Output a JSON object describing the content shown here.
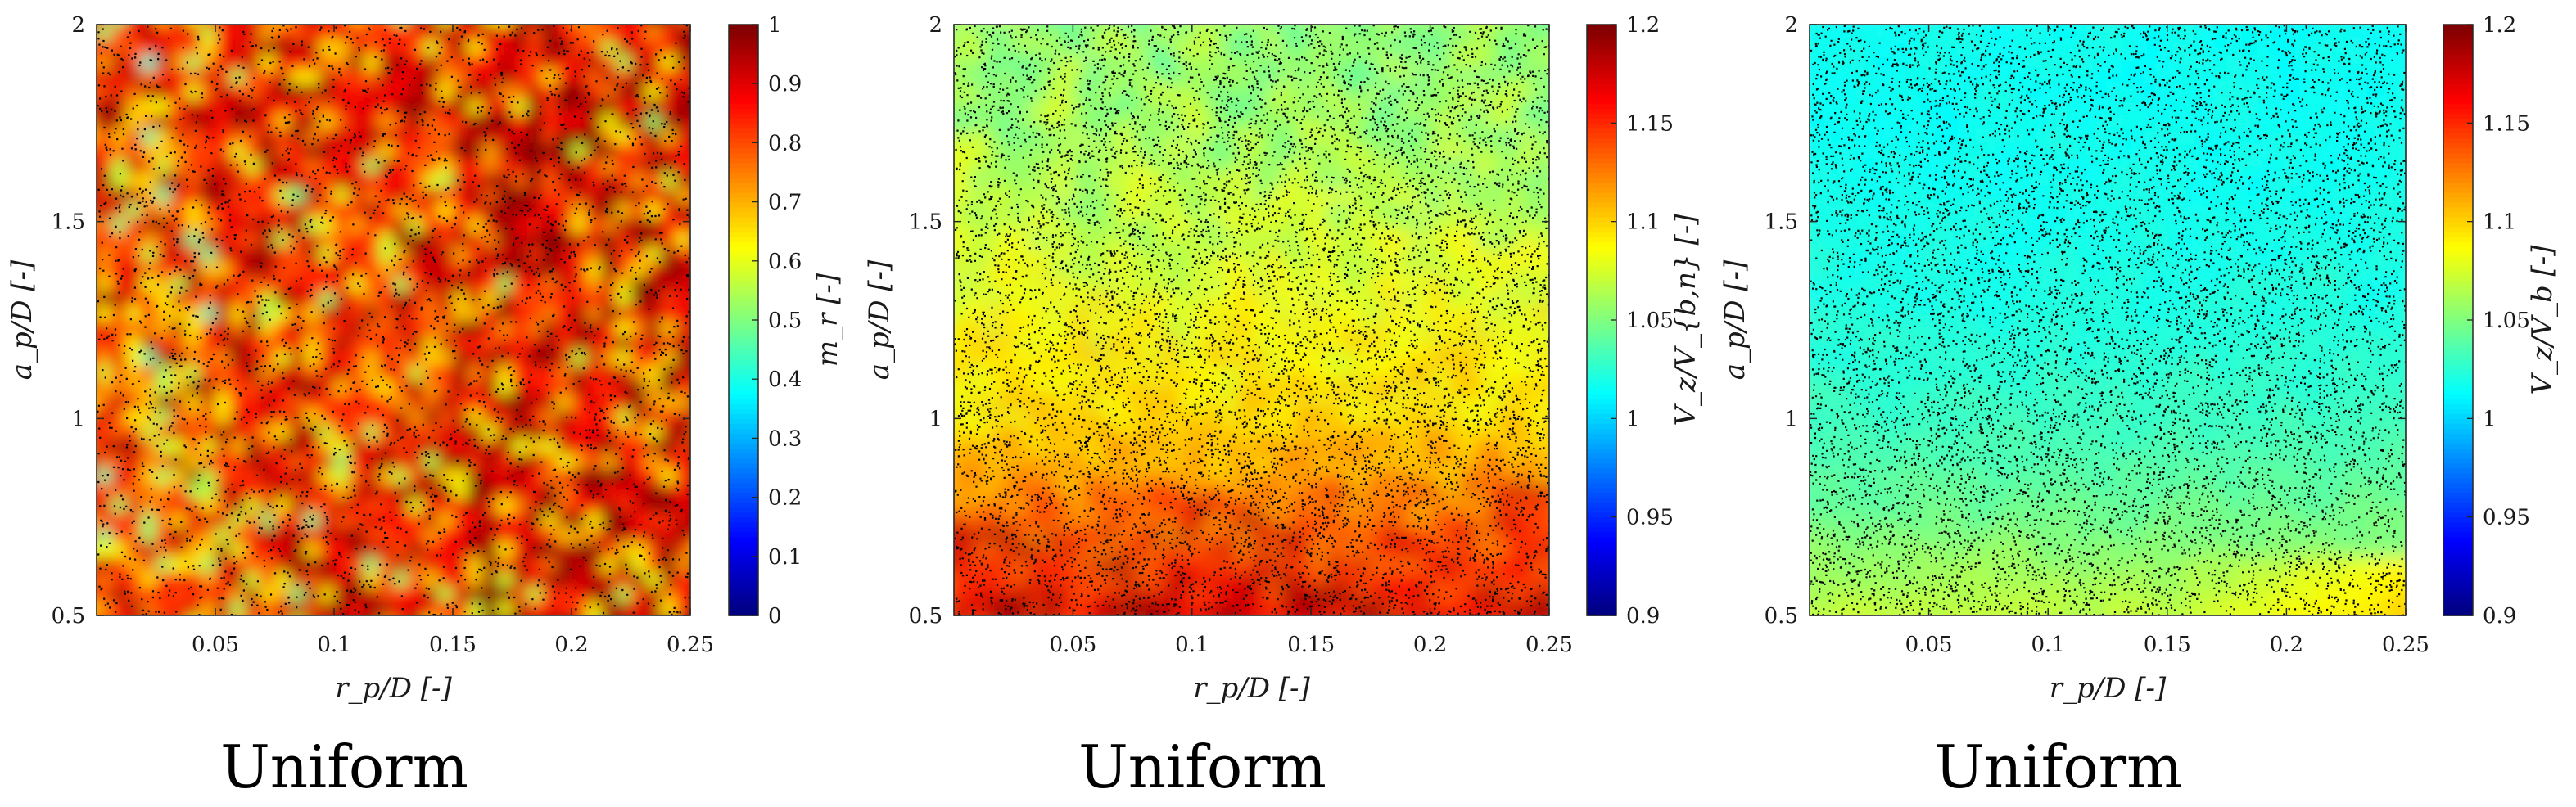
{
  "chart_data": [
    {
      "type": "heatmap",
      "title": "",
      "caption": "Uniform",
      "xlabel": "r_p/D [-]",
      "ylabel": "a_p/D [-]",
      "xlim": [
        0,
        0.25
      ],
      "ylim": [
        0.5,
        2
      ],
      "x_ticks": [
        0.05,
        0.1,
        0.15,
        0.2,
        0.25
      ],
      "x_tick_labels": [
        "0.05",
        "0.1",
        "0.15",
        "0.2",
        "0.25"
      ],
      "y_ticks": [
        0.5,
        1,
        1.5,
        2
      ],
      "y_tick_labels": [
        "0.5",
        "1",
        "1.5",
        "2"
      ],
      "colorbar": {
        "label": "m_r [-]",
        "range": [
          0,
          1
        ],
        "colormap": "jet",
        "ticks": [
          0,
          0.1,
          0.2,
          0.3,
          0.4,
          0.5,
          0.6,
          0.7,
          0.8,
          0.9,
          1
        ],
        "tick_labels": [
          "0",
          "0.1",
          "0.2",
          "0.3",
          "0.4",
          "0.5",
          "0.6",
          "0.7",
          "0.8",
          "0.9",
          "1"
        ]
      },
      "field_summary": {
        "description": "mostly 0.8-1.0 (red), patches of 0.55-0.75 (yellow/orange) especially at small r_p",
        "mean_value": 0.85,
        "min_value": 0.45,
        "max_value": 1.0
      },
      "scatter_points": "dense black particle markers uniformly distributed (~5000)"
    },
    {
      "type": "heatmap",
      "title": "",
      "caption": "Uniform",
      "xlabel": "r_p/D [-]",
      "ylabel": "a_p/D [-]",
      "xlim": [
        0,
        0.25
      ],
      "ylim": [
        0.5,
        2
      ],
      "x_ticks": [
        0.05,
        0.1,
        0.15,
        0.2,
        0.25
      ],
      "x_tick_labels": [
        "0.05",
        "0.1",
        "0.15",
        "0.2",
        "0.25"
      ],
      "y_ticks": [
        0.5,
        1,
        1.5,
        2
      ],
      "y_tick_labels": [
        "0.5",
        "1",
        "1.5",
        "2"
      ],
      "colorbar": {
        "label": "V_z/V_{b,n} [-]",
        "range": [
          0.9,
          1.2
        ],
        "colormap": "jet",
        "ticks": [
          0.9,
          0.95,
          1,
          1.05,
          1.1,
          1.15,
          1.2
        ],
        "tick_labels": [
          "0.9",
          "0.95",
          "1",
          "1.05",
          "1.1",
          "1.15",
          "1.2"
        ]
      },
      "field_profile": {
        "description": "value decreases with a_p/D: ~1.15 near a_p/D=0.5, ~1.1 near 1, ~1.06 at top",
        "a_p_over_D": [
          0.5,
          0.75,
          1.0,
          1.25,
          1.5,
          1.75,
          2.0
        ],
        "value": [
          1.16,
          1.13,
          1.1,
          1.085,
          1.07,
          1.06,
          1.055
        ]
      },
      "scatter_points": "very dense black particle markers uniformly distributed (~12000)"
    },
    {
      "type": "heatmap",
      "title": "",
      "caption": "Uniform",
      "xlabel": "r_p/D [-]",
      "ylabel": "a_p/D [-]",
      "xlim": [
        0,
        0.25
      ],
      "ylim": [
        0.5,
        2
      ],
      "x_ticks": [
        0.05,
        0.1,
        0.15,
        0.2,
        0.25
      ],
      "x_tick_labels": [
        "0.05",
        "0.1",
        "0.15",
        "0.2",
        "0.25"
      ],
      "y_ticks": [
        0.5,
        1,
        1.5,
        2
      ],
      "y_tick_labels": [
        "0.5",
        "1",
        "1.5",
        "2"
      ],
      "colorbar": {
        "label": "V_z/V_b [-]",
        "range": [
          0.9,
          1.2
        ],
        "colormap": "jet",
        "ticks": [
          0.9,
          0.95,
          1,
          1.05,
          1.1,
          1.15,
          1.2
        ],
        "tick_labels": [
          "0.9",
          "0.95",
          "1",
          "1.05",
          "1.1",
          "1.15",
          "1.2"
        ]
      },
      "field_profile": {
        "description": "mostly ~1.01-1.02 (cyan) in upper region, ~1.04-1.06 (green) lower, ~1.09 (yellow/orange) near a_p/D=0.5, r_p/D>0.15",
        "a_p_over_D": [
          0.5,
          0.75,
          1.0,
          1.25,
          1.5,
          1.75,
          2.0
        ],
        "value": [
          1.07,
          1.045,
          1.03,
          1.022,
          1.018,
          1.016,
          1.015
        ]
      },
      "scatter_points": "very dense black particle markers uniformly distributed (~12000)"
    }
  ]
}
